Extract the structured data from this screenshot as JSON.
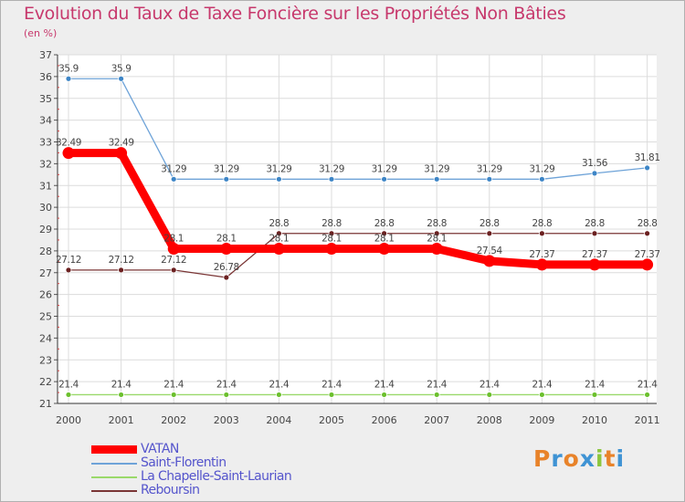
{
  "header": {
    "title": "Evolution du Taux de Taxe Foncière sur les Propriétés Non Bâties",
    "subtitle": "(en %)"
  },
  "logo": {
    "text": "Proxiti",
    "letters": [
      {
        "char": "P",
        "color": "#e8832a"
      },
      {
        "char": "r",
        "color": "#3f93d4"
      },
      {
        "char": "o",
        "color": "#e8832a"
      },
      {
        "char": "x",
        "color": "#3f93d4"
      },
      {
        "char": "i",
        "color": "#8cc63f"
      },
      {
        "char": "t",
        "color": "#e8832a"
      },
      {
        "char": "i",
        "color": "#3f93d4"
      }
    ]
  },
  "chart_data": {
    "type": "line",
    "title": "Evolution du Taux de Taxe Foncière sur les Propriétés Non Bâties",
    "ylabel": "(en %)",
    "xlabel": "",
    "ylim": [
      21,
      37
    ],
    "yticks": [
      "21",
      "22",
      "23",
      "24",
      "25",
      "26",
      "27",
      "28",
      "29",
      "30",
      "31",
      "32",
      "33",
      "34",
      "35",
      "36",
      "37"
    ],
    "categories": [
      "2000",
      "2001",
      "2002",
      "2003",
      "2004",
      "2005",
      "2006",
      "2007",
      "2008",
      "2009",
      "2010",
      "2011"
    ],
    "grid": true,
    "legend_position": "bottom-left",
    "series": [
      {
        "name": "VATAN",
        "color": "#ff0000",
        "marker_color": "#ff0000",
        "bold": true,
        "values": [
          32.49,
          32.49,
          28.1,
          28.1,
          28.1,
          28.1,
          28.1,
          28.1,
          27.54,
          27.37,
          27.37,
          27.37
        ],
        "labels": [
          "32.49",
          "32.49",
          "28.1",
          "28.1",
          "28.1",
          "28.1",
          "28.1",
          "28.1",
          "27.54",
          "27.37",
          "27.37",
          "27.37"
        ]
      },
      {
        "name": "Saint-Florentin",
        "color": "#6ea3d8",
        "marker_color": "#3d85c6",
        "bold": false,
        "values": [
          35.9,
          35.9,
          31.29,
          31.29,
          31.29,
          31.29,
          31.29,
          31.29,
          31.29,
          31.29,
          31.56,
          31.81
        ],
        "labels": [
          "35.9",
          "35.9",
          "31.29",
          "31.29",
          "31.29",
          "31.29",
          "31.29",
          "31.29",
          "31.29",
          "31.29",
          "31.56",
          "31.81"
        ]
      },
      {
        "name": "La Chapelle-Saint-Laurian",
        "color": "#9ad96a",
        "marker_color": "#6cc02e",
        "bold": false,
        "values": [
          21.4,
          21.4,
          21.4,
          21.4,
          21.4,
          21.4,
          21.4,
          21.4,
          21.4,
          21.4,
          21.4,
          21.4
        ],
        "labels": [
          "21.4",
          "21.4",
          "21.4",
          "21.4",
          "21.4",
          "21.4",
          "21.4",
          "21.4",
          "21.4",
          "21.4",
          "21.4",
          "21.4"
        ]
      },
      {
        "name": "Reboursin",
        "color": "#7a3535",
        "marker_color": "#6b2020",
        "bold": false,
        "values": [
          27.12,
          27.12,
          27.12,
          26.78,
          28.8,
          28.8,
          28.8,
          28.8,
          28.8,
          28.8,
          28.8,
          28.8
        ],
        "labels": [
          "27.12",
          "27.12",
          "27.12",
          "26.78",
          "28.8",
          "28.8",
          "28.8",
          "28.8",
          "28.8",
          "28.8",
          "28.8",
          "28.8"
        ]
      }
    ]
  }
}
